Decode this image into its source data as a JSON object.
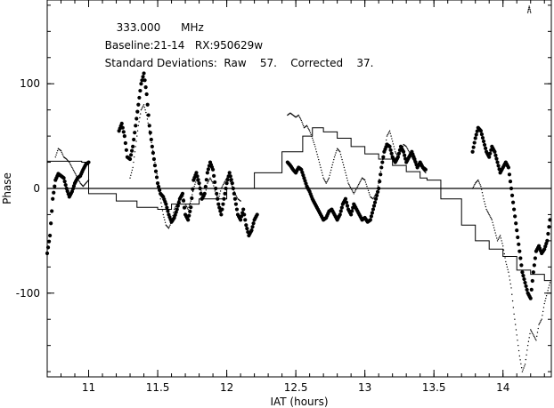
{
  "header": {
    "line1": {
      "freq": "333.000",
      "unit": "MHz"
    },
    "line2": {
      "baseline": "Baseline:21-14",
      "rx": "RX:950629w"
    },
    "line3": {
      "label": "Standard Deviations:",
      "raw_label": "Raw",
      "raw_value": "57.",
      "corr_label": "Corrected",
      "corr_value": "37."
    }
  },
  "chart_data": {
    "type": "scatter",
    "xlabel": "IAT (hours)",
    "ylabel": "Phase",
    "xlim": [
      10.7,
      14.35
    ],
    "ylim": [
      -180,
      180
    ],
    "xticks": [
      11,
      11.5,
      12,
      12.5,
      13,
      13.5,
      14
    ],
    "xtick_labels": [
      "11",
      "11.5",
      "12",
      "12.5",
      "13",
      "13.5",
      "14"
    ],
    "yticks": [
      100,
      0,
      -100
    ],
    "ytick_labels": [
      "100",
      "0",
      "-100"
    ],
    "zero_line": true,
    "series": [
      {
        "style": "thick-dots",
        "segments": [
          {
            "x": [
              10.7,
              10.72,
              10.74,
              10.76,
              10.78,
              10.8,
              10.82,
              10.84,
              10.86,
              10.88,
              10.9,
              10.92,
              10.94,
              10.96,
              10.98,
              11.0
            ],
            "y": [
              -62,
              -45,
              -10,
              8,
              14,
              12,
              10,
              0,
              -8,
              -3,
              5,
              10,
              12,
              18,
              23,
              25
            ]
          },
          {
            "x": [
              11.22,
              11.24,
              11.26,
              11.28,
              11.3,
              11.32,
              11.34,
              11.36,
              11.38,
              11.4,
              11.42,
              11.44,
              11.46,
              11.48,
              11.5,
              11.52,
              11.54,
              11.56,
              11.58,
              11.6,
              11.62,
              11.64,
              11.66,
              11.68,
              11.7,
              11.72,
              11.74,
              11.76,
              11.78,
              11.8,
              11.82,
              11.84,
              11.86,
              11.88,
              11.9,
              11.92,
              11.94,
              11.96,
              11.98,
              12.0,
              12.02,
              12.04,
              12.06,
              12.08,
              12.1,
              12.12,
              12.14,
              12.16,
              12.18,
              12.2,
              12.22
            ],
            "y": [
              55,
              62,
              50,
              30,
              28,
              40,
              60,
              80,
              100,
              110,
              90,
              60,
              40,
              22,
              5,
              -5,
              -8,
              -15,
              -25,
              -32,
              -28,
              -20,
              -10,
              -5,
              -25,
              -30,
              -18,
              8,
              15,
              5,
              -10,
              -5,
              15,
              25,
              18,
              0,
              -15,
              -25,
              -10,
              5,
              15,
              5,
              -10,
              -25,
              -30,
              -20,
              -35,
              -45,
              -40,
              -30,
              -25
            ]
          },
          {
            "x": [
              12.44,
              12.46,
              12.48,
              12.5,
              12.52,
              12.54,
              12.56,
              12.58,
              12.6,
              12.62,
              12.64,
              12.66,
              12.68,
              12.7,
              12.72,
              12.74,
              12.76,
              12.78,
              12.8,
              12.82,
              12.84,
              12.86,
              12.88,
              12.9,
              12.92,
              12.94,
              12.96,
              12.98,
              13.0,
              13.02,
              13.04,
              13.06,
              13.08,
              13.1,
              13.12,
              13.14,
              13.16,
              13.18,
              13.2,
              13.22,
              13.24,
              13.26,
              13.28,
              13.3,
              13.32,
              13.34,
              13.36,
              13.38,
              13.4,
              13.42,
              13.44
            ],
            "y": [
              25,
              22,
              18,
              15,
              20,
              18,
              10,
              2,
              -3,
              -10,
              -15,
              -20,
              -25,
              -30,
              -28,
              -22,
              -20,
              -25,
              -30,
              -25,
              -15,
              -10,
              -20,
              -25,
              -15,
              -20,
              -25,
              -30,
              -28,
              -32,
              -30,
              -20,
              -10,
              0,
              20,
              35,
              42,
              40,
              30,
              25,
              30,
              40,
              35,
              25,
              30,
              35,
              28,
              20,
              25,
              20,
              18
            ]
          },
          {
            "x": [
              13.78,
              13.8,
              13.82,
              13.84,
              13.86,
              13.88,
              13.9,
              13.92,
              13.94,
              13.96,
              13.98,
              14.0,
              14.02,
              14.04,
              14.06,
              14.08,
              14.1,
              14.12,
              14.14,
              14.16,
              14.18,
              14.2,
              14.22,
              14.24,
              14.26,
              14.28,
              14.3,
              14.32,
              14.34
            ],
            "y": [
              35,
              48,
              58,
              55,
              45,
              35,
              30,
              40,
              35,
              25,
              15,
              20,
              25,
              20,
              0,
              -20,
              -40,
              -60,
              -80,
              -90,
              -100,
              -105,
              -80,
              -60,
              -55,
              -62,
              -58,
              -50,
              -30
            ]
          }
        ]
      },
      {
        "style": "fine-dots",
        "segments": [
          {
            "x": [
              10.76,
              10.78,
              10.8,
              10.82,
              10.84,
              10.86,
              10.88,
              10.9,
              10.92,
              10.94,
              10.96,
              10.98,
              11.0
            ],
            "y": [
              30,
              38,
              36,
              30,
              28,
              25,
              20,
              15,
              10,
              5,
              2,
              5,
              8
            ]
          },
          {
            "x": [
              11.3,
              11.32,
              11.34,
              11.36,
              11.38,
              11.4,
              11.42,
              11.44,
              11.46,
              11.48,
              11.5,
              11.52,
              11.54,
              11.56,
              11.58,
              11.6,
              11.62,
              11.64,
              11.66,
              11.68,
              11.7,
              11.72,
              11.74,
              11.76,
              11.78,
              11.8,
              11.82,
              11.84,
              11.86,
              11.88,
              11.9,
              11.92,
              11.94,
              11.96,
              11.98,
              12.0,
              12.02,
              12.04,
              12.06,
              12.08,
              12.1
            ],
            "y": [
              10,
              20,
              40,
              60,
              75,
              80,
              70,
              55,
              40,
              25,
              10,
              -10,
              -25,
              -35,
              -38,
              -32,
              -20,
              -15,
              -8,
              -5,
              -15,
              -20,
              -12,
              0,
              8,
              5,
              -5,
              -8,
              5,
              10,
              5,
              -5,
              -10,
              0,
              5,
              10,
              8,
              2,
              -5,
              -10,
              -12
            ]
          },
          {
            "x": [
              12.44,
              12.46,
              12.48,
              12.5,
              12.52,
              12.54,
              12.56,
              12.58,
              12.6,
              12.62,
              12.64,
              12.66,
              12.68,
              12.7,
              12.72,
              12.74,
              12.76,
              12.78,
              12.8,
              12.82,
              12.84,
              12.86,
              12.88,
              12.9,
              12.92,
              12.94,
              12.96,
              12.98,
              13.0,
              13.02,
              13.04,
              13.06,
              13.08,
              13.1,
              13.12,
              13.14,
              13.16,
              13.18,
              13.2,
              13.22,
              13.24,
              13.26,
              13.28,
              13.3,
              13.32,
              13.34,
              13.36,
              13.38,
              13.4,
              13.42,
              13.44
            ],
            "y": [
              70,
              72,
              70,
              68,
              70,
              65,
              58,
              60,
              55,
              48,
              40,
              30,
              20,
              10,
              5,
              10,
              20,
              30,
              38,
              35,
              25,
              15,
              5,
              0,
              -5,
              0,
              5,
              10,
              8,
              0,
              -8,
              -10,
              -5,
              5,
              20,
              35,
              50,
              55,
              45,
              35,
              30,
              35,
              42,
              40,
              35,
              30,
              25,
              20,
              22,
              18,
              15
            ]
          },
          {
            "x": [
              13.78,
              13.8,
              13.82,
              13.84,
              13.86,
              13.88,
              13.9,
              13.92,
              13.94,
              13.96,
              13.98,
              14.0,
              14.02,
              14.04,
              14.06,
              14.08,
              14.1,
              14.12,
              14.14,
              14.16,
              14.18,
              14.2,
              14.22,
              14.24,
              14.26,
              14.28,
              14.3,
              14.32,
              14.34
            ],
            "y": [
              0,
              5,
              8,
              2,
              -10,
              -20,
              -25,
              -30,
              -40,
              -50,
              -45,
              -55,
              -70,
              -80,
              -95,
              -120,
              -140,
              -160,
              -175,
              -168,
              -150,
              -135,
              -140,
              -145,
              -130,
              -125,
              -110,
              -100,
              -90
            ]
          },
          {
            "x": [
              14.18,
              14.19,
              14.2
            ],
            "y": [
              168,
              174,
              168
            ]
          }
        ]
      },
      {
        "style": "line",
        "segments": [
          {
            "x": [
              10.7,
              10.95,
              11.0,
              11.2,
              11.35,
              11.5,
              11.6,
              11.8,
              12.0,
              12.2,
              12.4,
              12.55,
              12.62,
              12.7,
              12.8,
              12.9,
              13.0,
              13.1,
              13.2,
              13.3,
              13.4,
              13.45,
              13.55,
              13.7,
              13.8,
              13.9,
              14.0,
              14.1,
              14.2,
              14.3,
              14.35
            ],
            "y": [
              26,
              25,
              -5,
              -12,
              -18,
              -20,
              -15,
              -10,
              0,
              15,
              35,
              50,
              58,
              54,
              48,
              40,
              33,
              28,
              22,
              16,
              10,
              8,
              -10,
              -35,
              -50,
              -58,
              -65,
              -78,
              -82,
              -88,
              -89
            ]
          }
        ]
      }
    ]
  }
}
